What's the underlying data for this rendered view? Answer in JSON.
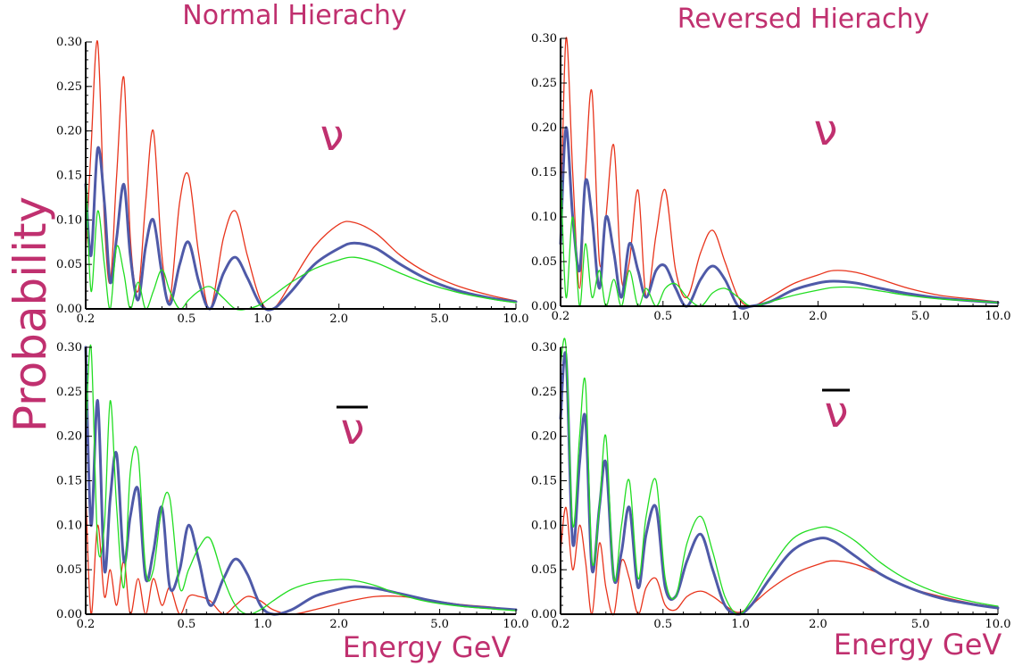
{
  "figure": {
    "ylabel": "Probability",
    "xlabel": "Energy GeV",
    "titles": [
      "Normal Hierachy",
      "Reversed Hierachy"
    ],
    "neutrino_label": "ν",
    "colors": {
      "blue": "#4f5aa8",
      "red": "#e8341c",
      "green": "#22dd22",
      "label": "#c0306f"
    }
  },
  "chart_data": [
    {
      "type": "line",
      "panel": "top-left",
      "title": "Normal Hierachy",
      "annotation": "ν",
      "antineutrino": false,
      "xscale": "log",
      "xlim": [
        0.2,
        10.0
      ],
      "ylim": [
        0,
        0.3
      ],
      "x_ticks": [
        "0.2",
        "0.5",
        "1.0",
        "2.0",
        "5.0",
        "10.0"
      ],
      "y_ticks": [
        "0.00",
        "0.05",
        "0.10",
        "0.15",
        "0.20",
        "0.25",
        "0.30"
      ],
      "series": [
        {
          "color": "red",
          "width": 1.3,
          "x": [
            0.2,
            0.21,
            0.223,
            0.237,
            0.25,
            0.265,
            0.283,
            0.3,
            0.322,
            0.345,
            0.37,
            0.4,
            0.43,
            0.47,
            0.51,
            0.56,
            0.62,
            0.7,
            0.78,
            0.87,
            0.98,
            1.1,
            1.3,
            1.6,
            2.0,
            2.3,
            2.8,
            3.5,
            4.5,
            6.0,
            8.0,
            10.0
          ],
          "y": [
            0.06,
            0.18,
            0.3,
            0.1,
            0.03,
            0.15,
            0.26,
            0.08,
            0.02,
            0.12,
            0.2,
            0.06,
            0.01,
            0.12,
            0.15,
            0.06,
            0.0,
            0.08,
            0.11,
            0.06,
            0.01,
            0.0,
            0.03,
            0.07,
            0.095,
            0.097,
            0.085,
            0.06,
            0.04,
            0.025,
            0.015,
            0.009
          ]
        },
        {
          "color": "blue",
          "width": 3,
          "x": [
            0.2,
            0.21,
            0.223,
            0.237,
            0.25,
            0.265,
            0.283,
            0.3,
            0.322,
            0.345,
            0.37,
            0.4,
            0.43,
            0.47,
            0.51,
            0.56,
            0.62,
            0.7,
            0.78,
            0.87,
            0.98,
            1.1,
            1.3,
            1.6,
            2.0,
            2.3,
            2.8,
            3.5,
            4.5,
            6.0,
            8.0,
            10.0
          ],
          "y": [
            0.14,
            0.06,
            0.18,
            0.12,
            0.03,
            0.08,
            0.14,
            0.06,
            0.01,
            0.07,
            0.1,
            0.04,
            0.005,
            0.05,
            0.075,
            0.03,
            0.0,
            0.04,
            0.058,
            0.035,
            0.005,
            0.0,
            0.02,
            0.05,
            0.068,
            0.074,
            0.068,
            0.05,
            0.033,
            0.02,
            0.012,
            0.008
          ]
        },
        {
          "color": "green",
          "width": 1.3,
          "x": [
            0.2,
            0.21,
            0.223,
            0.237,
            0.25,
            0.265,
            0.283,
            0.3,
            0.322,
            0.345,
            0.37,
            0.4,
            0.43,
            0.47,
            0.51,
            0.56,
            0.62,
            0.7,
            0.78,
            0.87,
            0.98,
            1.1,
            1.3,
            1.6,
            2.0,
            2.3,
            2.8,
            3.5,
            4.5,
            6.0,
            8.0,
            10.0
          ],
          "y": [
            0.16,
            0.02,
            0.11,
            0.05,
            0.0,
            0.07,
            0.04,
            0.0,
            0.03,
            0.0,
            0.02,
            0.044,
            0.02,
            0.0,
            0.01,
            0.02,
            0.025,
            0.012,
            0.0,
            0.0,
            0.005,
            0.015,
            0.03,
            0.045,
            0.055,
            0.058,
            0.052,
            0.04,
            0.028,
            0.018,
            0.011,
            0.007
          ]
        }
      ]
    },
    {
      "type": "line",
      "panel": "top-right",
      "title": "Reversed Hierachy",
      "annotation": "ν",
      "antineutrino": false,
      "xscale": "log",
      "xlim": [
        0.2,
        10.0
      ],
      "ylim": [
        0,
        0.3
      ],
      "x_ticks": [
        "0.2",
        "0.5",
        "1.0",
        "2.0",
        "5.0",
        "10.0"
      ],
      "y_ticks": [
        "0.00",
        "0.05",
        "0.10",
        "0.15",
        "0.20",
        "0.25",
        "0.30"
      ],
      "series": [
        {
          "color": "red",
          "width": 1.3,
          "x": [
            0.2,
            0.21,
            0.223,
            0.237,
            0.25,
            0.265,
            0.283,
            0.3,
            0.322,
            0.345,
            0.37,
            0.4,
            0.43,
            0.47,
            0.51,
            0.56,
            0.62,
            0.7,
            0.78,
            0.87,
            0.98,
            1.1,
            1.3,
            1.6,
            2.0,
            2.3,
            2.8,
            3.5,
            4.5,
            6.0,
            8.0,
            10.0
          ],
          "y": [
            0.07,
            0.3,
            0.15,
            0.02,
            0.15,
            0.24,
            0.05,
            0.1,
            0.18,
            0.03,
            0.05,
            0.13,
            0.01,
            0.08,
            0.13,
            0.04,
            0.01,
            0.06,
            0.085,
            0.05,
            0.01,
            0.0,
            0.01,
            0.025,
            0.035,
            0.04,
            0.038,
            0.03,
            0.02,
            0.012,
            0.008,
            0.005
          ]
        },
        {
          "color": "blue",
          "width": 3,
          "x": [
            0.2,
            0.21,
            0.223,
            0.237,
            0.25,
            0.265,
            0.283,
            0.3,
            0.322,
            0.345,
            0.37,
            0.4,
            0.43,
            0.47,
            0.51,
            0.56,
            0.62,
            0.7,
            0.78,
            0.87,
            0.98,
            1.1,
            1.3,
            1.6,
            2.0,
            2.3,
            2.8,
            3.5,
            4.5,
            6.0,
            8.0,
            10.0
          ],
          "y": [
            0.07,
            0.2,
            0.1,
            0.04,
            0.14,
            0.1,
            0.02,
            0.1,
            0.06,
            0.01,
            0.07,
            0.04,
            0.01,
            0.04,
            0.045,
            0.02,
            0.0,
            0.03,
            0.045,
            0.03,
            0.0,
            0.0,
            0.005,
            0.018,
            0.026,
            0.028,
            0.026,
            0.02,
            0.014,
            0.009,
            0.006,
            0.004
          ]
        },
        {
          "color": "green",
          "width": 1.3,
          "x": [
            0.2,
            0.21,
            0.223,
            0.237,
            0.25,
            0.265,
            0.283,
            0.3,
            0.322,
            0.345,
            0.37,
            0.4,
            0.43,
            0.47,
            0.51,
            0.56,
            0.62,
            0.7,
            0.78,
            0.87,
            0.98,
            1.1,
            1.3,
            1.6,
            2.0,
            2.3,
            2.8,
            3.5,
            4.5,
            6.0,
            8.0,
            10.0
          ],
          "y": [
            0.16,
            0.01,
            0.1,
            0.0,
            0.07,
            0.01,
            0.04,
            0.0,
            0.03,
            0.0,
            0.04,
            0.0,
            0.02,
            0.0,
            0.02,
            0.025,
            0.01,
            0.0,
            0.015,
            0.02,
            0.01,
            0.0,
            0.005,
            0.012,
            0.018,
            0.021,
            0.021,
            0.017,
            0.012,
            0.008,
            0.006,
            0.004
          ]
        }
      ]
    },
    {
      "type": "line",
      "panel": "bottom-left",
      "title": "",
      "annotation": "ν",
      "antineutrino": true,
      "xscale": "log",
      "xlim": [
        0.2,
        10.0
      ],
      "ylim": [
        0,
        0.3
      ],
      "x_ticks": [
        "0.2",
        "0.5",
        "1.0",
        "2.0",
        "5.0",
        "10.0"
      ],
      "y_ticks": [
        "0.00",
        "0.05",
        "0.10",
        "0.15",
        "0.20",
        "0.25",
        "0.30"
      ],
      "series": [
        {
          "color": "red",
          "width": 1.3,
          "x": [
            0.2,
            0.21,
            0.223,
            0.237,
            0.25,
            0.265,
            0.283,
            0.3,
            0.322,
            0.345,
            0.37,
            0.4,
            0.43,
            0.47,
            0.51,
            0.56,
            0.62,
            0.7,
            0.78,
            0.87,
            0.98,
            1.1,
            1.3,
            1.6,
            2.0,
            2.3,
            2.8,
            3.5,
            4.5,
            6.0,
            8.0,
            10.0
          ],
          "y": [
            0.14,
            0.0,
            0.1,
            0.02,
            0.05,
            0.01,
            0.06,
            0.0,
            0.04,
            0.0,
            0.04,
            0.01,
            0.03,
            0.0,
            0.02,
            0.02,
            0.015,
            0.0,
            0.01,
            0.02,
            0.015,
            0.005,
            0.0,
            0.005,
            0.012,
            0.016,
            0.02,
            0.02,
            0.016,
            0.011,
            0.008,
            0.005
          ]
        },
        {
          "color": "blue",
          "width": 3,
          "x": [
            0.2,
            0.21,
            0.223,
            0.237,
            0.25,
            0.265,
            0.283,
            0.3,
            0.322,
            0.345,
            0.37,
            0.4,
            0.43,
            0.47,
            0.51,
            0.56,
            0.62,
            0.7,
            0.78,
            0.87,
            0.98,
            1.1,
            1.3,
            1.6,
            2.0,
            2.3,
            2.8,
            3.5,
            4.5,
            6.0,
            8.0,
            10.0
          ],
          "y": [
            0.3,
            0.1,
            0.24,
            0.05,
            0.13,
            0.18,
            0.06,
            0.11,
            0.14,
            0.04,
            0.07,
            0.12,
            0.03,
            0.05,
            0.1,
            0.06,
            0.01,
            0.04,
            0.062,
            0.045,
            0.01,
            0.0,
            0.005,
            0.02,
            0.028,
            0.031,
            0.029,
            0.023,
            0.016,
            0.01,
            0.007,
            0.005
          ]
        },
        {
          "color": "green",
          "width": 1.3,
          "x": [
            0.2,
            0.21,
            0.223,
            0.237,
            0.25,
            0.265,
            0.283,
            0.3,
            0.322,
            0.345,
            0.37,
            0.4,
            0.43,
            0.47,
            0.51,
            0.56,
            0.62,
            0.7,
            0.78,
            0.87,
            0.98,
            1.1,
            1.3,
            1.6,
            2.0,
            2.3,
            2.8,
            3.5,
            4.5,
            6.0,
            8.0,
            10.0
          ],
          "y": [
            0.2,
            0.3,
            0.08,
            0.1,
            0.24,
            0.12,
            0.03,
            0.16,
            0.18,
            0.05,
            0.05,
            0.12,
            0.13,
            0.03,
            0.05,
            0.075,
            0.085,
            0.04,
            0.01,
            0.0,
            0.005,
            0.015,
            0.028,
            0.036,
            0.039,
            0.038,
            0.032,
            0.022,
            0.014,
            0.009,
            0.006,
            0.004
          ]
        }
      ]
    },
    {
      "type": "line",
      "panel": "bottom-right",
      "title": "",
      "annotation": "ν",
      "antineutrino": true,
      "xscale": "log",
      "xlim": [
        0.2,
        10.0
      ],
      "ylim": [
        0,
        0.3
      ],
      "x_ticks": [
        "0.2",
        "0.5",
        "1.0",
        "2.0",
        "5.0",
        "10.0"
      ],
      "y_ticks": [
        "0.00",
        "0.05",
        "0.10",
        "0.15",
        "0.20",
        "0.25",
        "0.30"
      ],
      "series": [
        {
          "color": "red",
          "width": 1.3,
          "x": [
            0.2,
            0.21,
            0.223,
            0.237,
            0.25,
            0.265,
            0.283,
            0.3,
            0.322,
            0.345,
            0.37,
            0.4,
            0.43,
            0.47,
            0.51,
            0.56,
            0.62,
            0.7,
            0.78,
            0.87,
            0.98,
            1.1,
            1.3,
            1.6,
            2.0,
            2.3,
            2.8,
            3.5,
            4.5,
            6.0,
            8.0,
            10.0
          ],
          "y": [
            0.07,
            0.12,
            0.05,
            0.1,
            0.06,
            0.0,
            0.08,
            0.03,
            0.0,
            0.06,
            0.04,
            0.0,
            0.03,
            0.04,
            0.01,
            0.005,
            0.02,
            0.026,
            0.02,
            0.01,
            0.002,
            0.01,
            0.028,
            0.045,
            0.056,
            0.06,
            0.056,
            0.045,
            0.03,
            0.02,
            0.012,
            0.008
          ]
        },
        {
          "color": "blue",
          "width": 3,
          "x": [
            0.2,
            0.21,
            0.223,
            0.237,
            0.25,
            0.265,
            0.283,
            0.3,
            0.322,
            0.345,
            0.37,
            0.4,
            0.43,
            0.47,
            0.51,
            0.56,
            0.62,
            0.7,
            0.78,
            0.87,
            0.98,
            1.1,
            1.3,
            1.6,
            2.0,
            2.3,
            2.8,
            3.5,
            4.5,
            6.0,
            8.0,
            10.0
          ],
          "y": [
            0.22,
            0.29,
            0.08,
            0.17,
            0.22,
            0.05,
            0.12,
            0.17,
            0.04,
            0.07,
            0.12,
            0.03,
            0.09,
            0.12,
            0.03,
            0.02,
            0.06,
            0.09,
            0.05,
            0.01,
            0.0,
            0.01,
            0.04,
            0.072,
            0.085,
            0.082,
            0.065,
            0.045,
            0.03,
            0.018,
            0.011,
            0.007
          ]
        },
        {
          "color": "green",
          "width": 1.3,
          "x": [
            0.2,
            0.21,
            0.223,
            0.237,
            0.25,
            0.265,
            0.283,
            0.3,
            0.322,
            0.345,
            0.37,
            0.4,
            0.43,
            0.47,
            0.51,
            0.56,
            0.62,
            0.7,
            0.78,
            0.87,
            0.98,
            1.1,
            1.3,
            1.6,
            2.0,
            2.3,
            2.8,
            3.5,
            4.5,
            6.0,
            8.0,
            10.0
          ],
          "y": [
            0.28,
            0.3,
            0.1,
            0.2,
            0.26,
            0.06,
            0.12,
            0.2,
            0.04,
            0.1,
            0.15,
            0.04,
            0.11,
            0.15,
            0.04,
            0.02,
            0.08,
            0.11,
            0.07,
            0.02,
            0.0,
            0.015,
            0.05,
            0.085,
            0.097,
            0.096,
            0.082,
            0.058,
            0.038,
            0.023,
            0.014,
            0.009
          ]
        }
      ]
    }
  ]
}
